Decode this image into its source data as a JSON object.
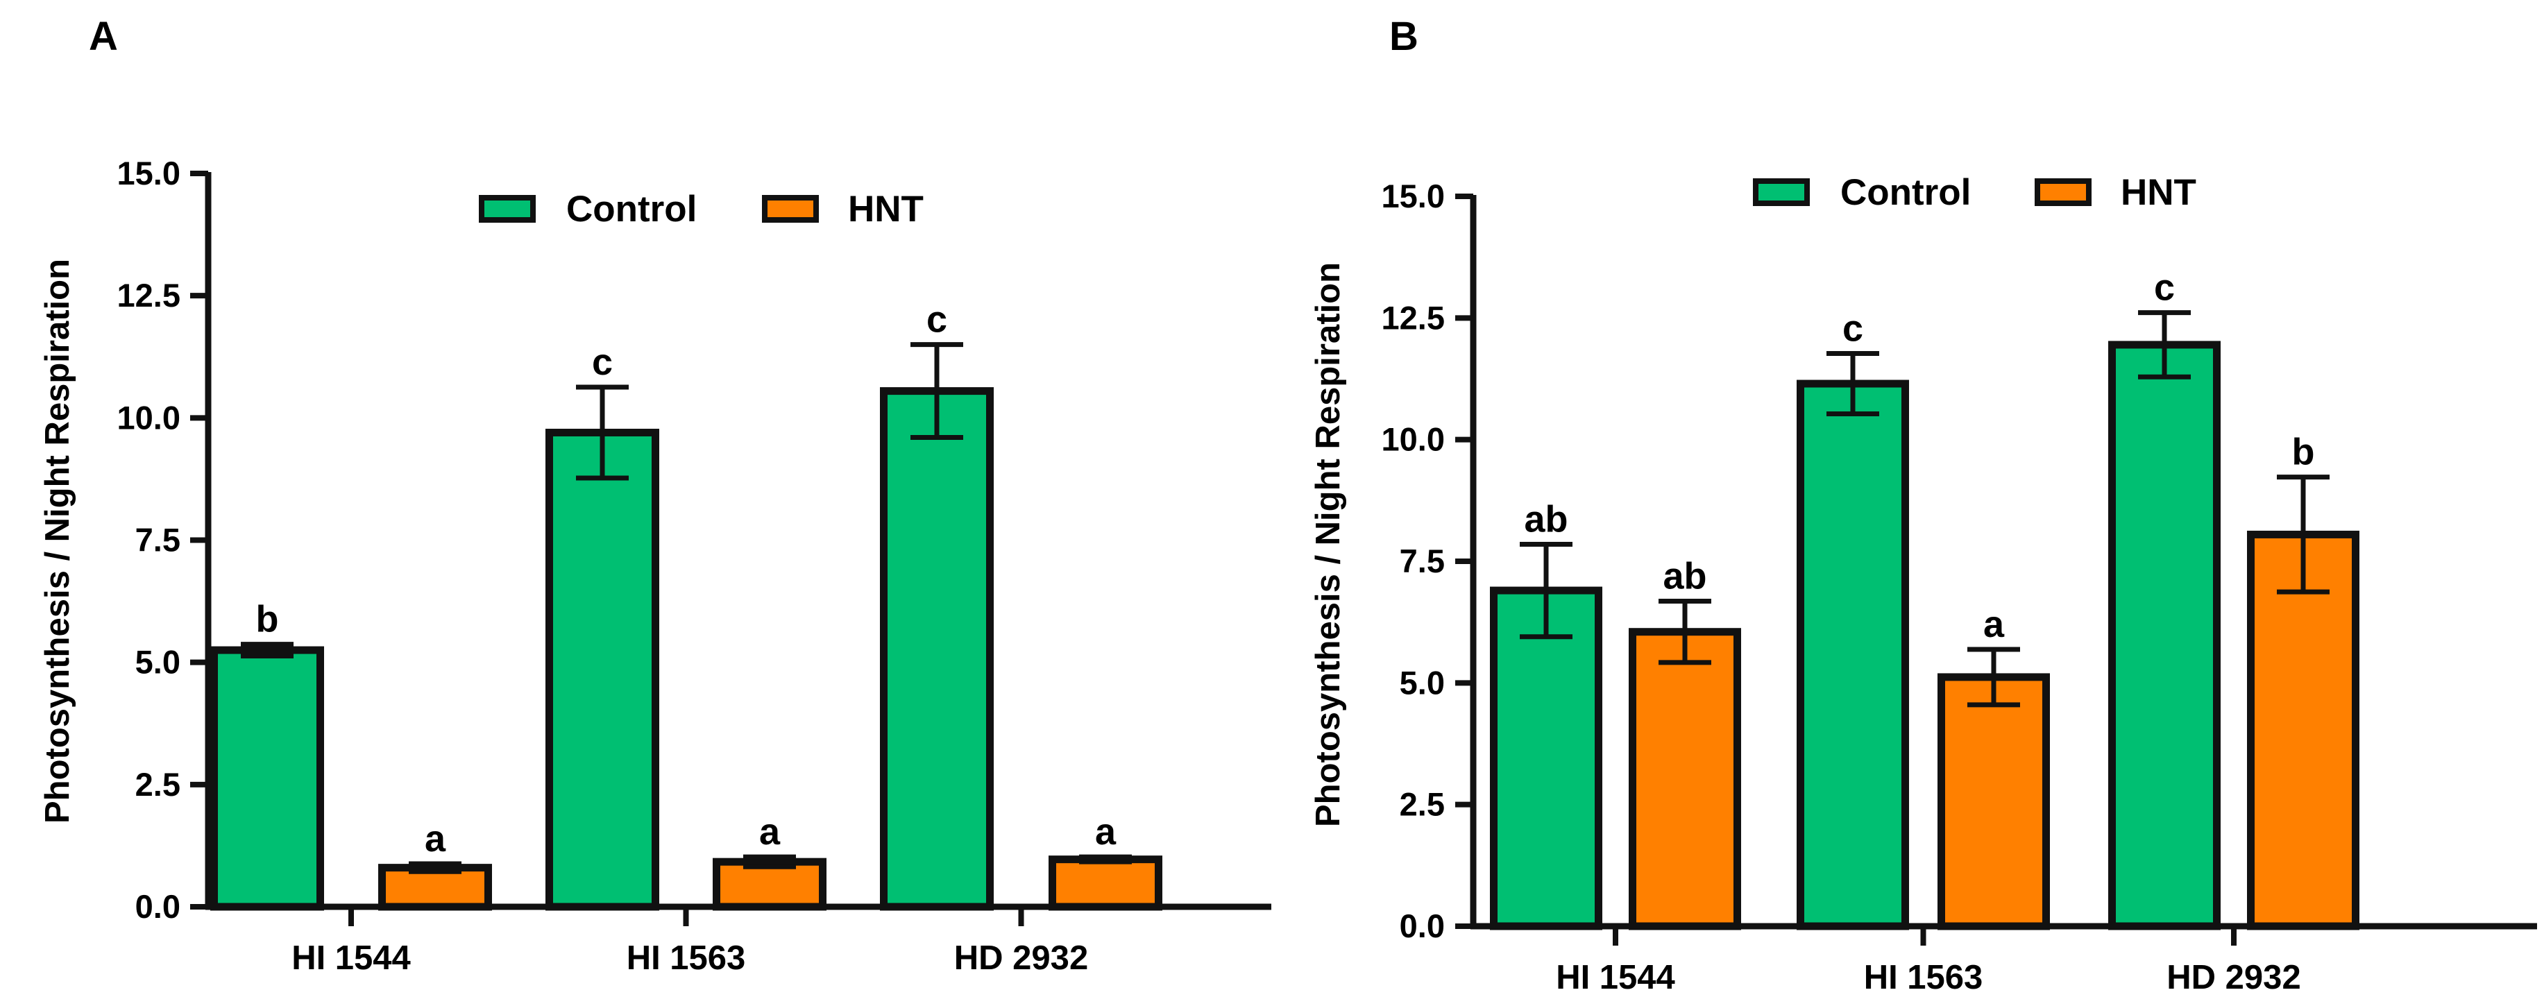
{
  "chart_data": [
    {
      "panel": "A",
      "type": "bar",
      "title": "",
      "xlabel": "",
      "ylabel": "Photosynthesis / Night Respiration",
      "ylim": [
        0,
        15
      ],
      "yticks": [
        "0.0",
        "2.5",
        "5.0",
        "7.5",
        "10.0",
        "12.5",
        "15.0"
      ],
      "categories": [
        "HI 1544",
        "HI 1563",
        "HD 2932"
      ],
      "legend_position": "top-center",
      "series": [
        {
          "name": "Control",
          "color": "#00BF72",
          "values": [
            5.25,
            9.7,
            10.55
          ],
          "errors": [
            0.12,
            0.93,
            0.95
          ],
          "labels": [
            "b",
            "c",
            "c"
          ]
        },
        {
          "name": "HNT",
          "color": "#FF8000",
          "values": [
            0.8,
            0.92,
            0.97
          ],
          "errors": [
            0.08,
            0.1,
            0.05
          ],
          "labels": [
            "a",
            "a",
            "a"
          ]
        }
      ]
    },
    {
      "panel": "B",
      "type": "bar",
      "title": "",
      "xlabel": "",
      "ylabel": "Photosynthesis / Night Respiration",
      "ylim": [
        0,
        15
      ],
      "yticks": [
        "0.0",
        "2.5",
        "5.0",
        "7.5",
        "10.0",
        "12.5",
        "15.0"
      ],
      "categories": [
        "HI 1544",
        "HI 1563",
        "HD 2932"
      ],
      "legend_position": "top-center",
      "series": [
        {
          "name": "Control",
          "color": "#00BF72",
          "values": [
            6.9,
            11.15,
            11.95
          ],
          "errors": [
            0.95,
            0.62,
            0.66
          ],
          "labels": [
            "ab",
            "c",
            "c"
          ]
        },
        {
          "name": "HNT",
          "color": "#FF8000",
          "values": [
            6.05,
            5.12,
            8.05
          ],
          "errors": [
            0.63,
            0.57,
            1.18
          ],
          "labels": [
            "ab",
            "a",
            "b"
          ]
        }
      ]
    }
  ]
}
